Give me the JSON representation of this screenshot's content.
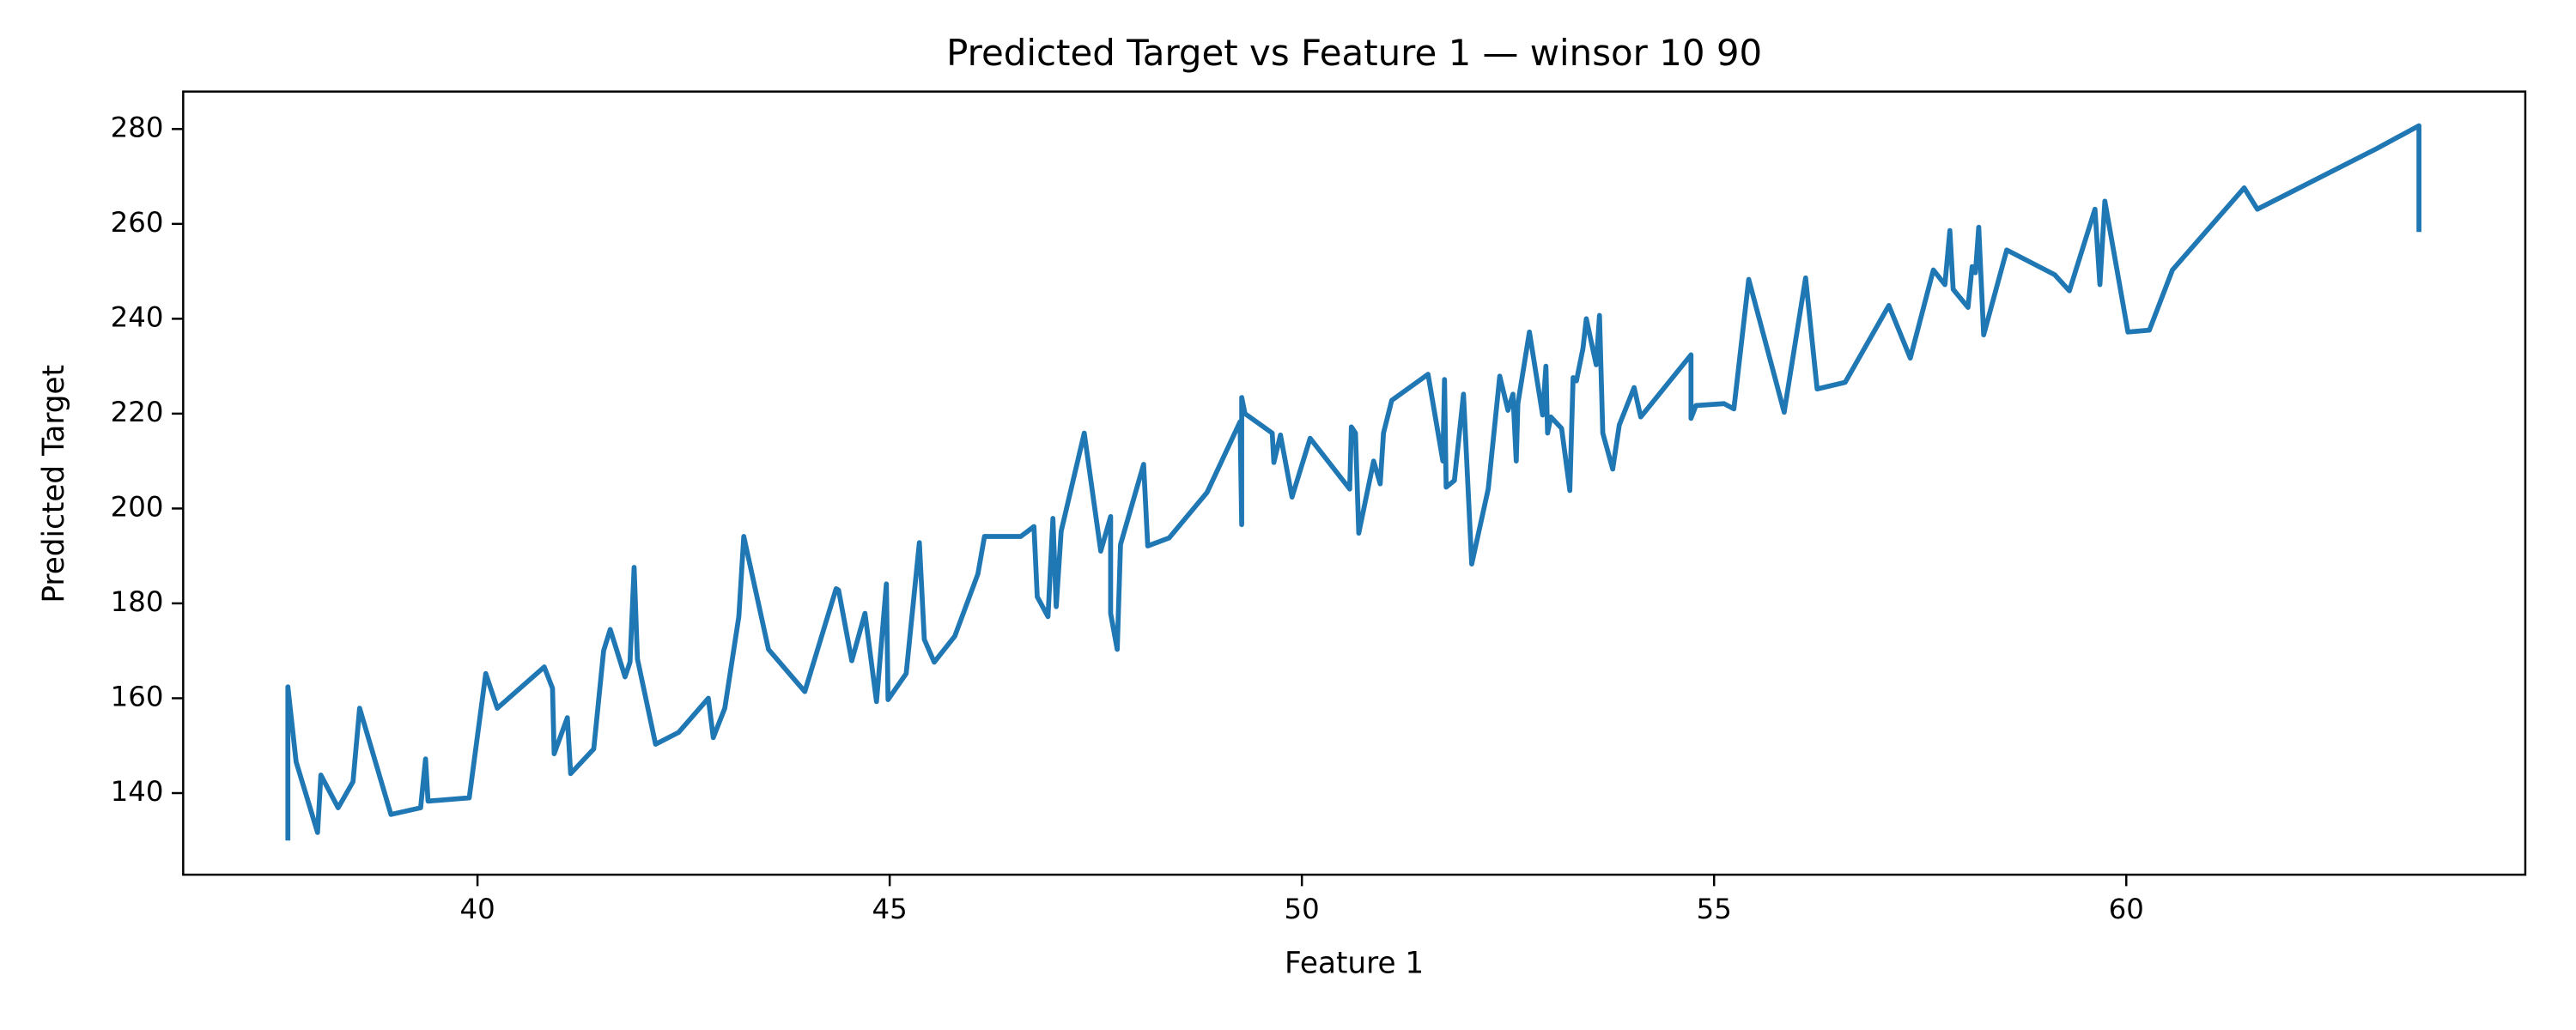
{
  "chart_data": {
    "type": "line",
    "title": "Predicted Target vs Feature 1 — winsor 10 90",
    "x_label": "Feature 1",
    "y_label": "Predicted Target",
    "color": "#1f77b4",
    "grid": false,
    "xlim": [
      36.43,
      64.84
    ],
    "ylim": [
      122.8,
      287.9
    ],
    "xticks": [
      40,
      45,
      50,
      55,
      60
    ],
    "yticks": [
      140,
      160,
      180,
      200,
      220,
      240,
      260,
      280
    ],
    "x": [
      37.7,
      37.7,
      37.8,
      38.06,
      38.1,
      38.31,
      38.49,
      38.57,
      38.95,
      39.31,
      39.37,
      39.4,
      39.9,
      40.1,
      40.24,
      40.81,
      40.91,
      40.93,
      41.09,
      41.13,
      41.41,
      41.53,
      41.61,
      41.79,
      41.85,
      41.9,
      41.94,
      42.16,
      42.44,
      42.8,
      42.86,
      43.0,
      43.17,
      43.23,
      43.53,
      43.97,
      44.35,
      44.38,
      44.54,
      44.7,
      44.84,
      44.96,
      44.98,
      45.2,
      45.36,
      45.42,
      45.54,
      45.79,
      46.07,
      46.15,
      46.59,
      46.75,
      46.79,
      46.92,
      46.98,
      47.02,
      47.08,
      47.36,
      47.56,
      47.68,
      47.68,
      47.76,
      47.8,
      48.08,
      48.13,
      48.39,
      48.85,
      49.25,
      49.27,
      49.27,
      49.31,
      49.64,
      49.66,
      49.74,
      49.88,
      50.1,
      50.58,
      50.6,
      50.65,
      50.69,
      50.87,
      50.95,
      50.99,
      51.09,
      51.53,
      51.71,
      51.73,
      51.75,
      51.85,
      51.96,
      52.06,
      52.26,
      52.4,
      52.5,
      52.56,
      52.6,
      52.62,
      52.76,
      52.92,
      52.96,
      52.98,
      53.02,
      53.15,
      53.25,
      53.29,
      53.33,
      53.41,
      53.45,
      53.57,
      53.61,
      53.65,
      53.77,
      53.85,
      54.03,
      54.11,
      54.72,
      54.72,
      54.78,
      55.12,
      55.24,
      55.42,
      55.85,
      56.11,
      56.25,
      56.59,
      57.12,
      57.38,
      57.66,
      57.8,
      57.86,
      57.9,
      58.08,
      58.13,
      58.17,
      58.21,
      58.27,
      58.55,
      59.13,
      59.31,
      59.62,
      59.68,
      59.74,
      60.02,
      60.28,
      60.56,
      61.43,
      61.59,
      63.04,
      63.55,
      63.55
    ],
    "values": [
      130,
      162.4,
      146.6,
      131.7,
      143.8,
      136.9,
      142.4,
      157.9,
      135.5,
      136.9,
      147.2,
      138.3,
      139,
      165.2,
      157.9,
      166.6,
      162.1,
      148.3,
      155.9,
      144.1,
      149.3,
      170,
      174.5,
      164.5,
      167.6,
      187.6,
      168.3,
      150.3,
      152.8,
      160,
      151.7,
      157.9,
      177.2,
      194.1,
      170.3,
      161.4,
      183.1,
      182.8,
      167.9,
      177.9,
      159.3,
      184.1,
      159.7,
      165.2,
      192.8,
      172.4,
      167.6,
      173.1,
      186.2,
      194.1,
      194.1,
      196.2,
      181.4,
      177.2,
      197.9,
      179.3,
      195.2,
      215.9,
      191,
      198.3,
      177.9,
      170.3,
      192.4,
      209.3,
      192.1,
      193.8,
      203.4,
      218.3,
      196.6,
      223.4,
      220,
      215.9,
      209.7,
      215.5,
      202.4,
      214.8,
      204.1,
      217.2,
      215.9,
      194.8,
      210,
      205.2,
      215.9,
      222.8,
      228.3,
      210,
      227.2,
      204.5,
      205.9,
      224.1,
      188.3,
      204.1,
      227.9,
      220.7,
      224.1,
      210,
      222.1,
      237.2,
      219.7,
      230,
      215.9,
      219.3,
      216.9,
      203.8,
      227.6,
      226.9,
      233.8,
      240,
      230.3,
      240.7,
      215.9,
      208.3,
      217.6,
      225.5,
      219.3,
      232.4,
      219,
      221.7,
      222.1,
      221,
      248.3,
      220.3,
      248.6,
      225.2,
      226.6,
      242.8,
      231.7,
      250.3,
      247.2,
      258.6,
      246.2,
      242.4,
      251,
      249.7,
      259.3,
      236.6,
      254.5,
      249.3,
      245.9,
      263.1,
      247.2,
      264.8,
      237.2,
      237.6,
      250.3,
      267.6,
      263.1,
      275.9,
      280.7,
      258.3
    ]
  }
}
